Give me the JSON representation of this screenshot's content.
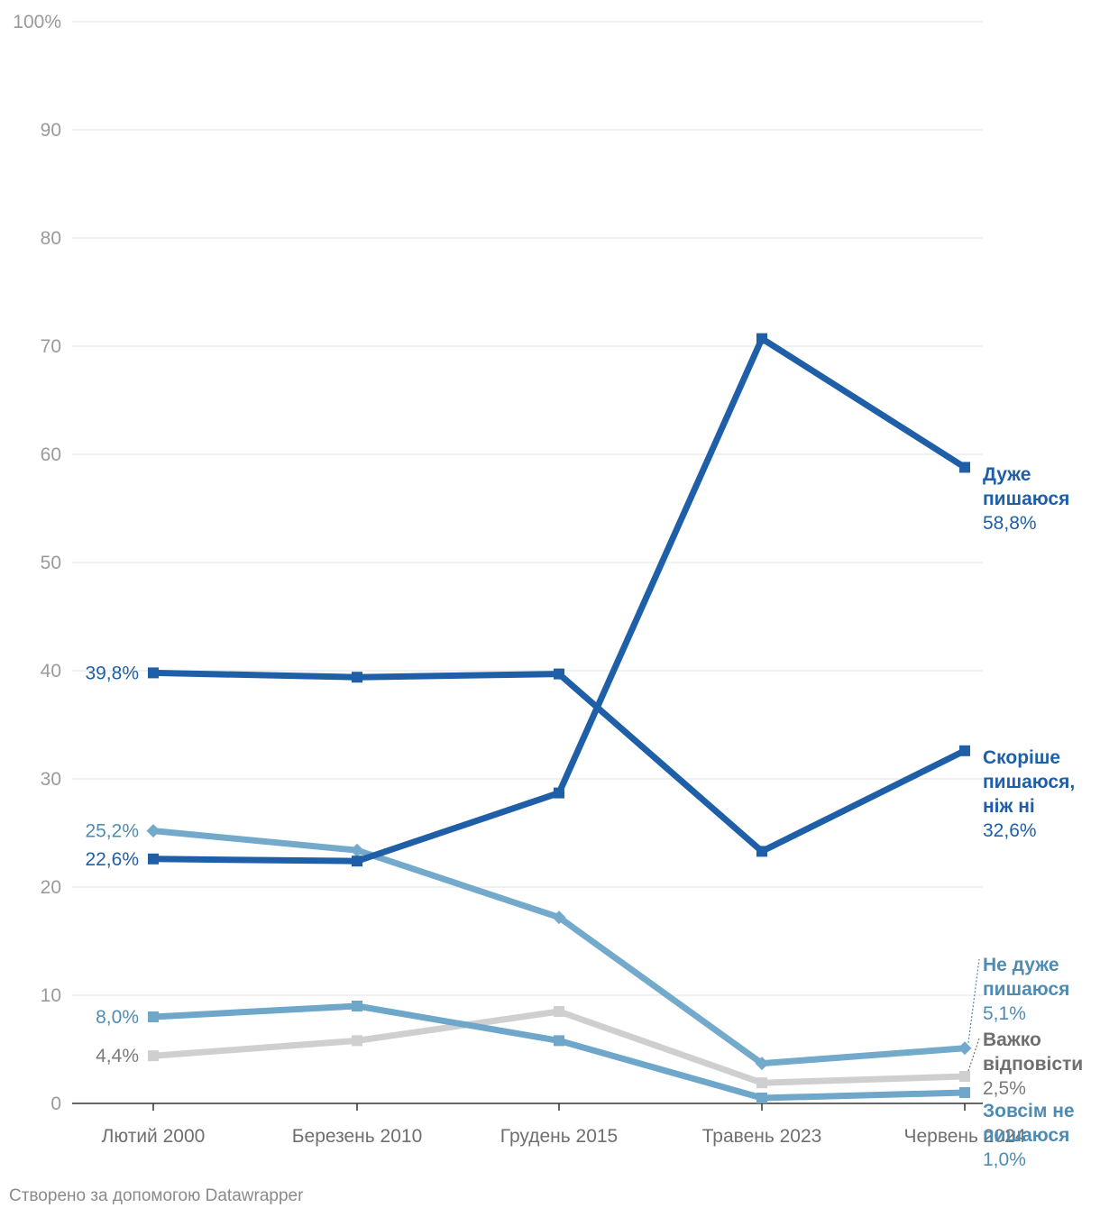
{
  "chart_data": {
    "type": "line",
    "title": "",
    "xlabel": "",
    "ylabel": "",
    "ylim": [
      0,
      100
    ],
    "y_ticks": [
      {
        "value": 0,
        "label": "0"
      },
      {
        "value": 10,
        "label": "10"
      },
      {
        "value": 20,
        "label": "20"
      },
      {
        "value": 30,
        "label": "30"
      },
      {
        "value": 40,
        "label": "40"
      },
      {
        "value": 50,
        "label": "50"
      },
      {
        "value": 60,
        "label": "60"
      },
      {
        "value": 70,
        "label": "70"
      },
      {
        "value": 80,
        "label": "80"
      },
      {
        "value": 90,
        "label": "90"
      },
      {
        "value": 100,
        "label": "100%"
      }
    ],
    "categories": [
      "Лютий 2000",
      "Березень 2010",
      "Грудень 2015",
      "Травень 2023",
      "Червень 2024"
    ],
    "grid": true,
    "series": [
      {
        "name": "Дуже пишаюся",
        "values": [
          22.6,
          22.4,
          28.7,
          70.7,
          58.8
        ],
        "color": "#1f5fa8",
        "marker": "square",
        "end_label": [
          "Дуже",
          "пишаюся"
        ],
        "end_value": "58,8%",
        "start_value": "22,6%"
      },
      {
        "name": "Скоріше пишаюся, ніж ні",
        "values": [
          39.8,
          39.4,
          39.7,
          23.3,
          32.6
        ],
        "color": "#1f5fa8",
        "marker": "square",
        "end_label": [
          "Скоріше",
          "пишаюся,",
          "ніж ні"
        ],
        "end_value": "32,6%",
        "start_value": "39,8%"
      },
      {
        "name": "Не дуже пишаюся",
        "values": [
          25.2,
          23.4,
          17.2,
          3.7,
          5.1
        ],
        "color": "#73aacb",
        "marker": "diamond",
        "end_label": [
          "Не дуже",
          "пишаюся"
        ],
        "end_value": "5,1%",
        "start_value": "25,2%"
      },
      {
        "name": "Зовсім не пишаюся",
        "values": [
          8.0,
          9.0,
          5.8,
          0.5,
          1.0
        ],
        "color": "#6ea7ca",
        "marker": "square",
        "end_label": [
          "Зовсім не",
          "пишаюся"
        ],
        "end_value": "1,0%",
        "start_value": "8,0%"
      },
      {
        "name": "Важко відповісти",
        "values": [
          4.4,
          5.8,
          8.5,
          1.9,
          2.5
        ],
        "color": "#cfcfcf",
        "marker": "square",
        "end_label": [
          "Важко",
          "відповісти"
        ],
        "end_value": "2,5%",
        "start_value": "4,4%"
      }
    ]
  },
  "footer": {
    "credit": "Створено за допомогою Datawrapper"
  }
}
